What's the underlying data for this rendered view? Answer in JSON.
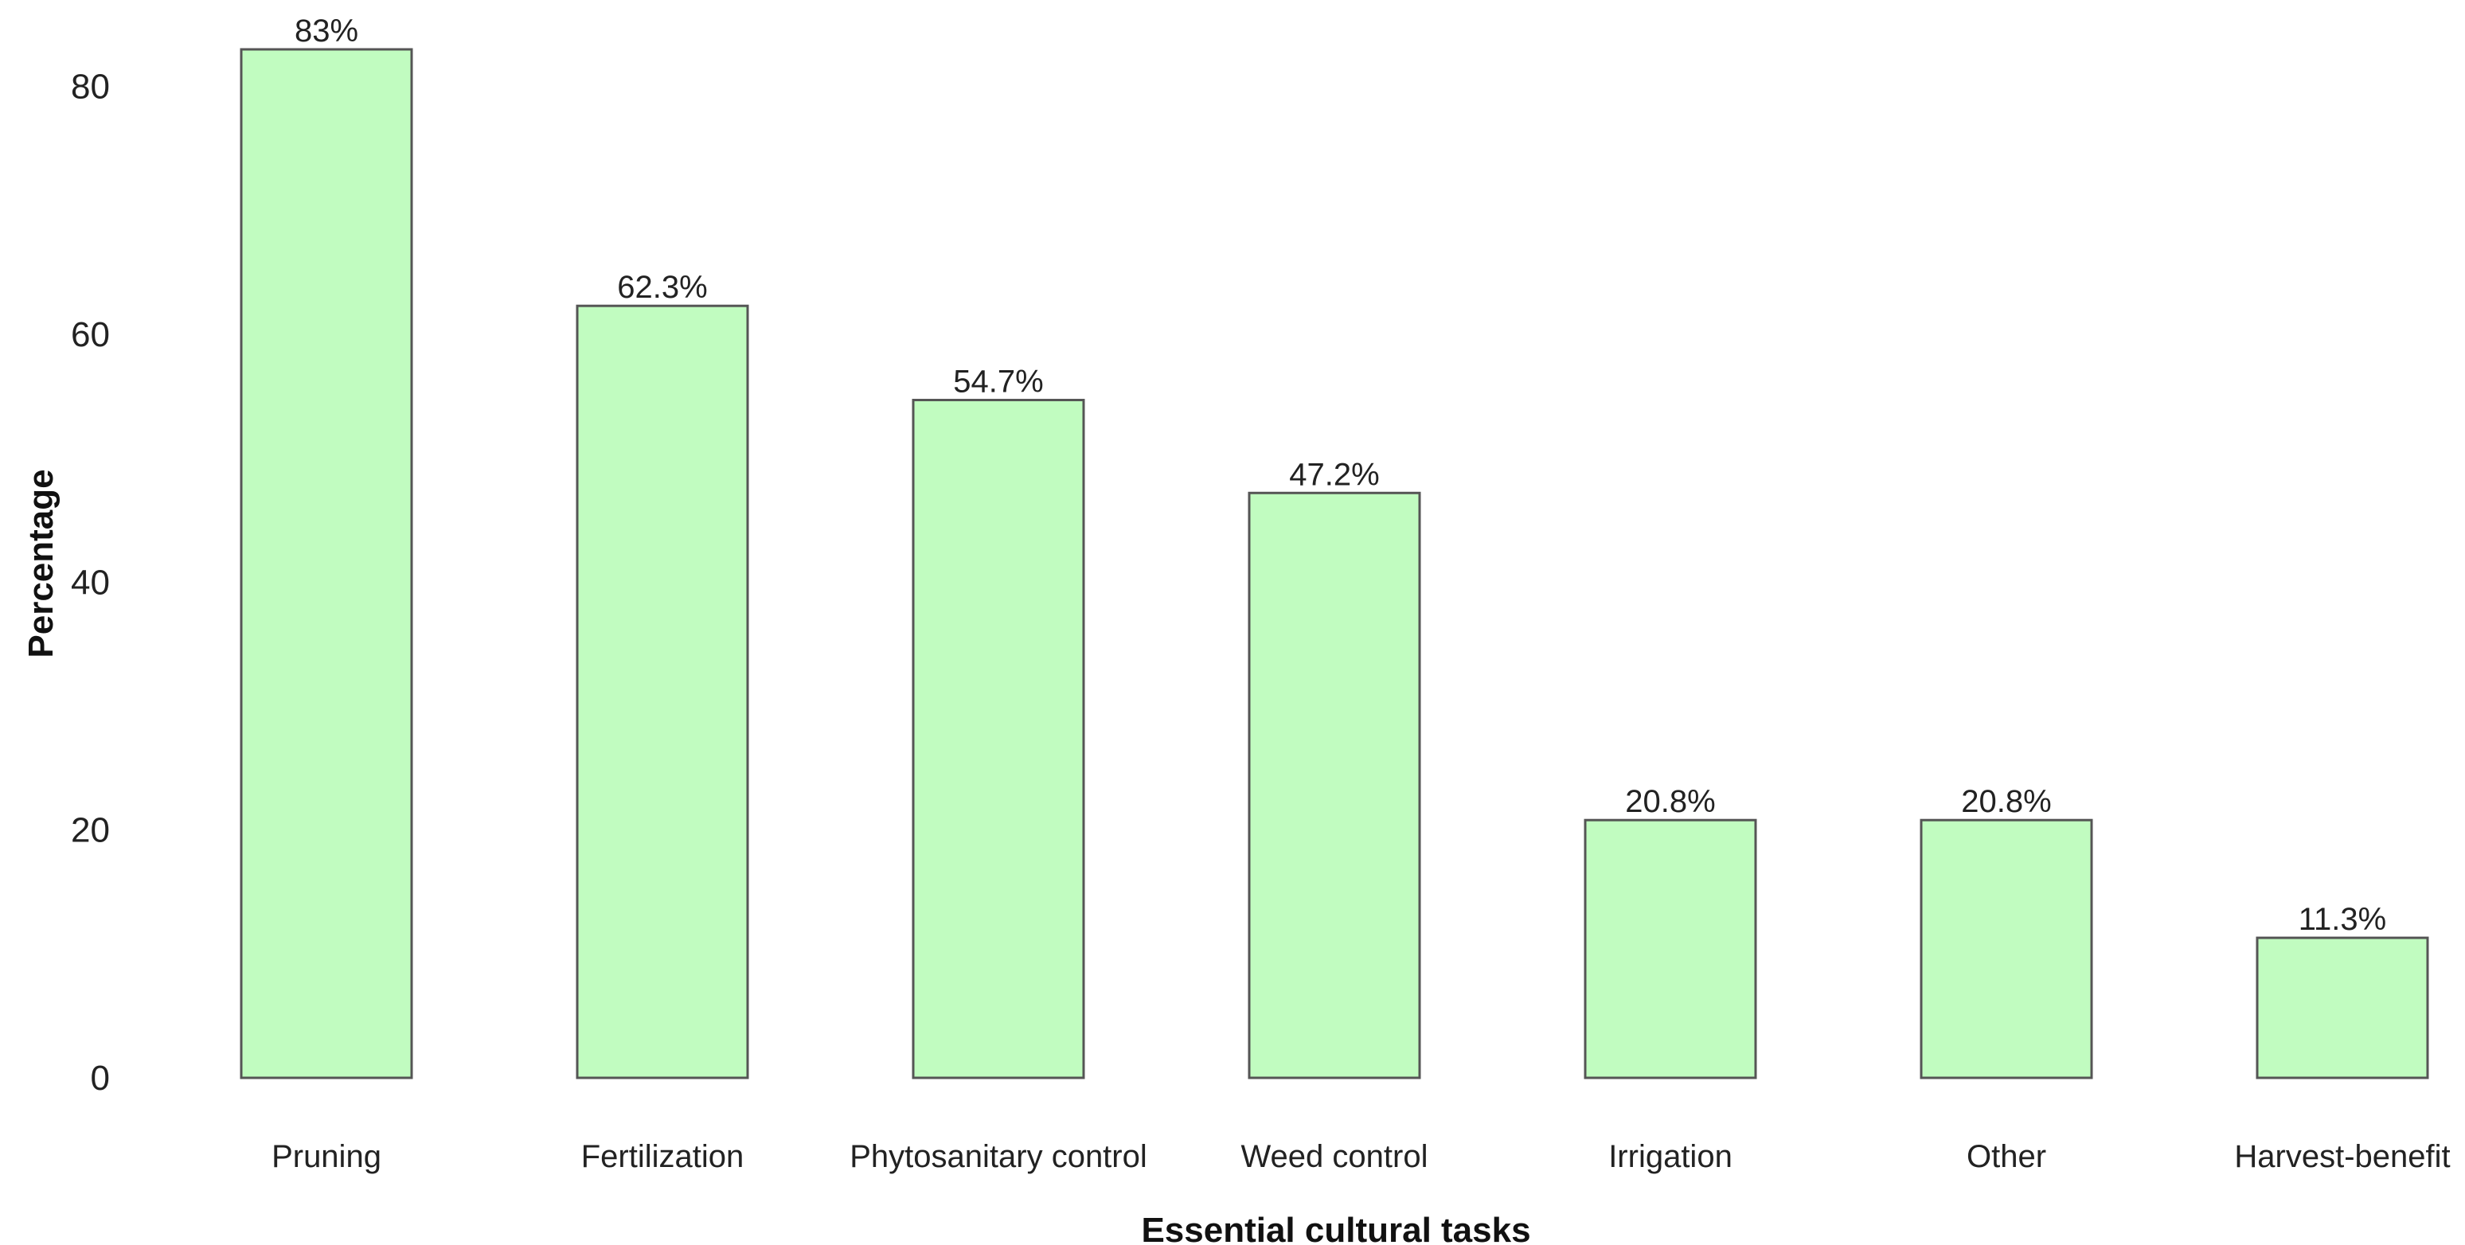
{
  "chart_data": {
    "type": "bar",
    "title": "",
    "xlabel": "Essential cultural tasks",
    "ylabel": "Percentage",
    "categories": [
      "Pruning",
      "Fertilization",
      "Phytosanitary control",
      "Weed control",
      "Irrigation",
      "Other",
      "Harvest-benefit"
    ],
    "values": [
      83,
      62.3,
      54.7,
      47.2,
      20.8,
      20.8,
      11.3
    ],
    "data_labels": [
      "83%",
      "62.3%",
      "54.7%",
      "47.2%",
      "20.8%",
      "20.8%",
      "11.3%"
    ],
    "y_ticks": [
      0,
      20,
      40,
      60,
      80
    ],
    "y_tick_labels": [
      "0",
      "20",
      "40",
      "60",
      "80"
    ],
    "ylim": [
      0,
      83
    ],
    "grid": false,
    "legend": "none",
    "colors": {
      "bar_fill": "#c1fcc0",
      "bar_stroke": "#555555",
      "axis": "#333333"
    }
  }
}
